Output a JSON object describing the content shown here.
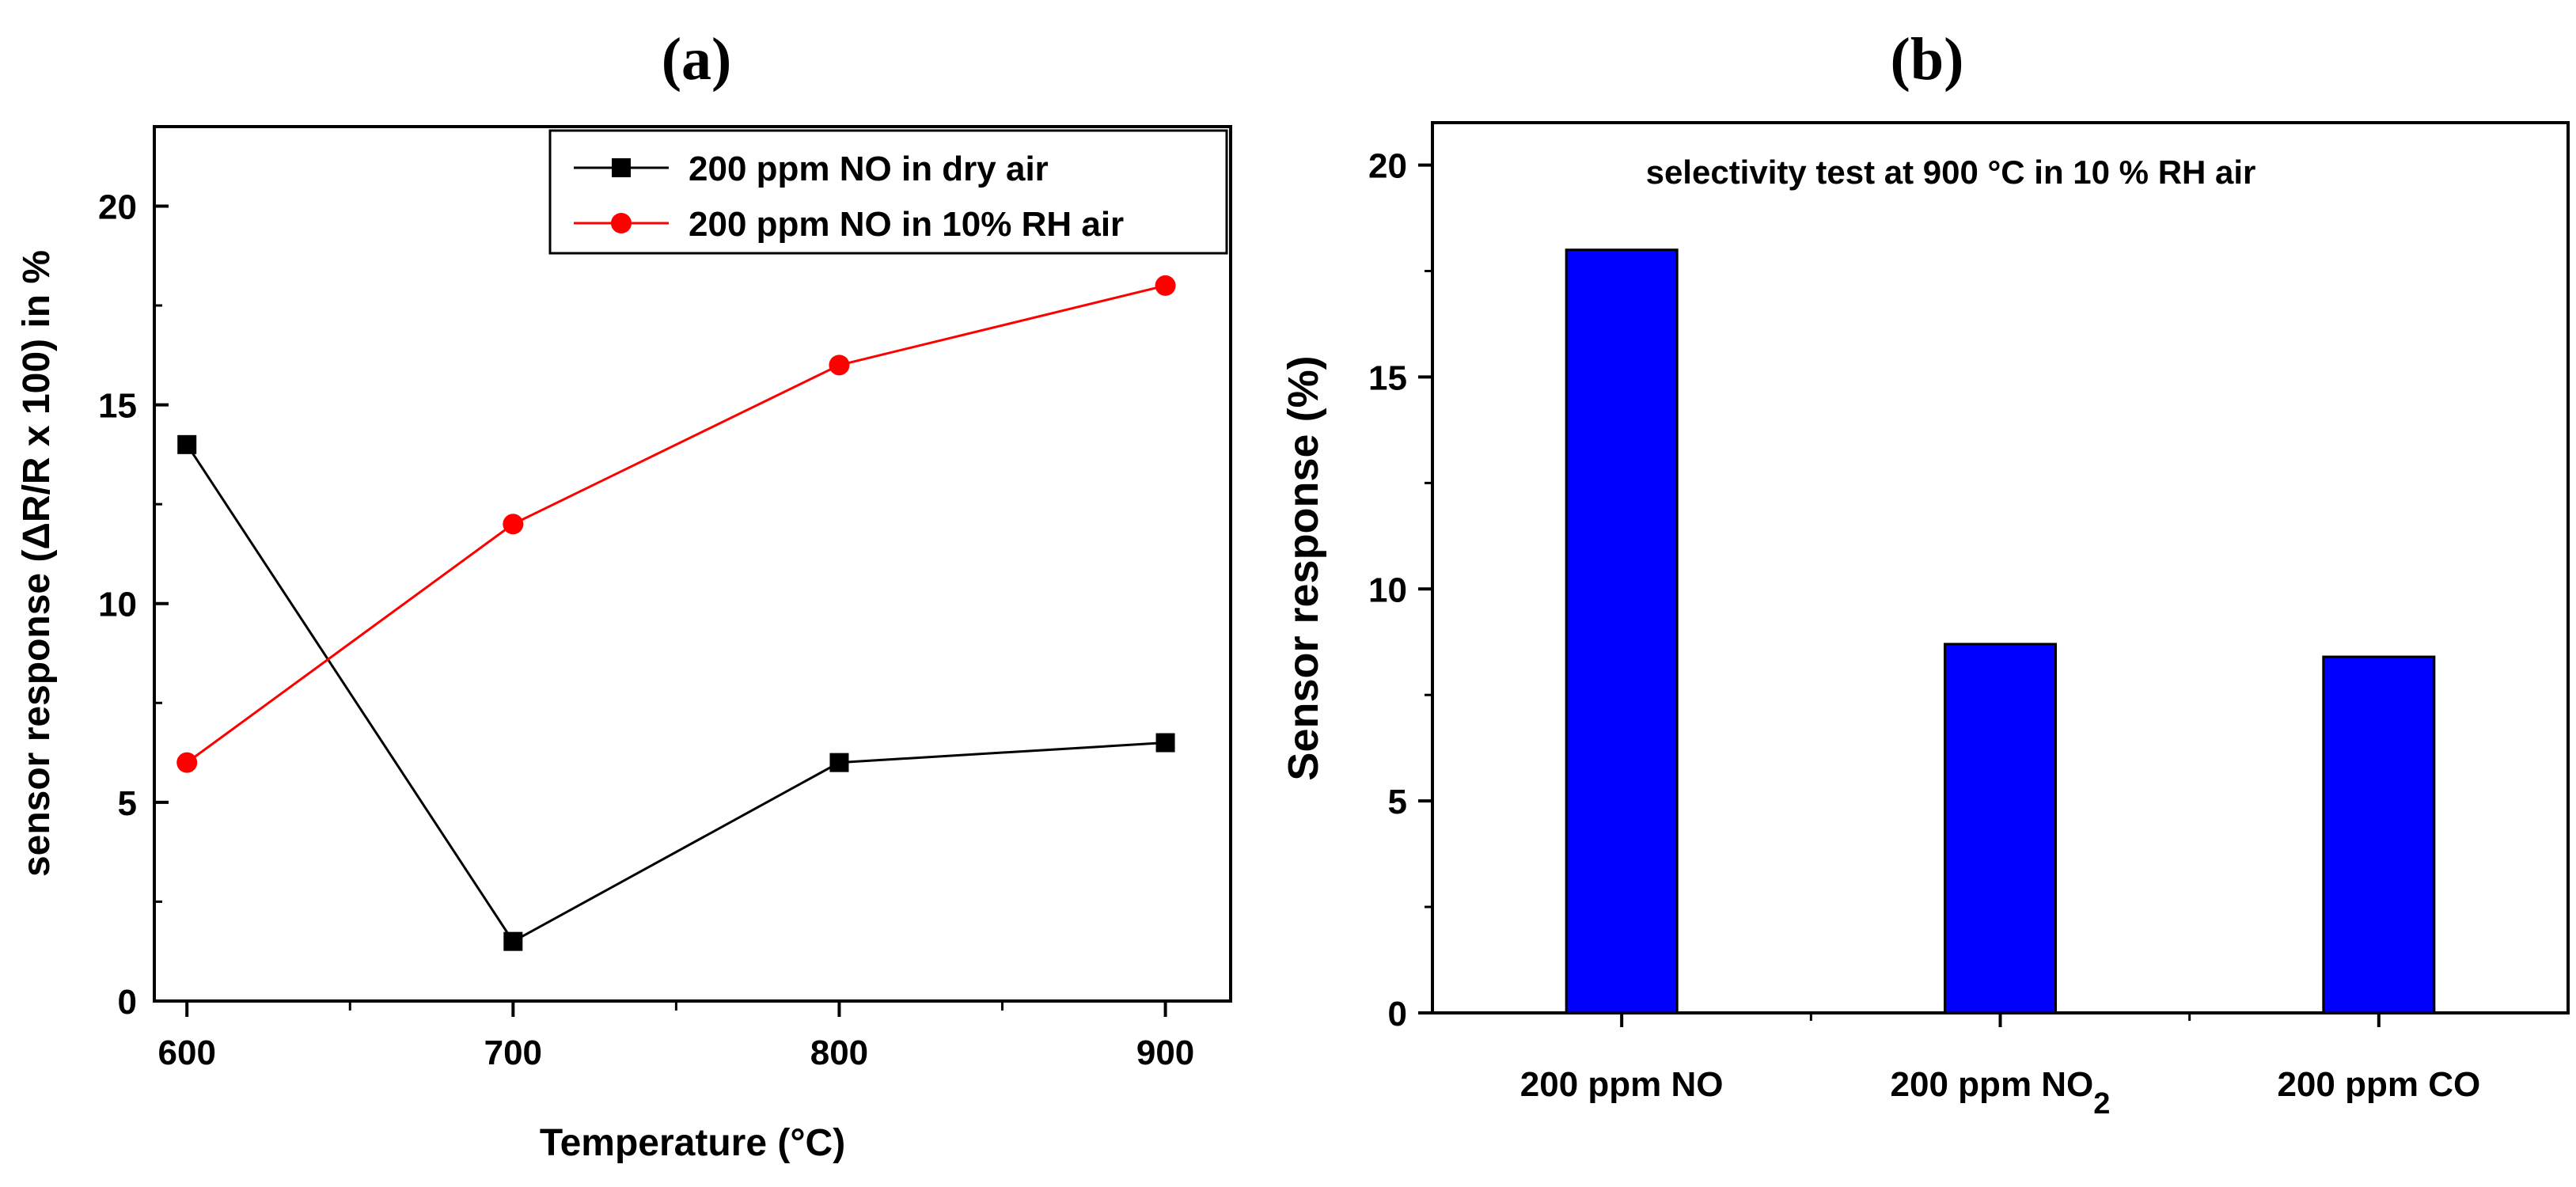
{
  "chart_data": [
    {
      "panel": "(a)",
      "type": "line",
      "x": [
        600,
        700,
        800,
        900
      ],
      "xlim": [
        590,
        920
      ],
      "ylim": [
        0,
        22
      ],
      "xticks": [
        600,
        700,
        800,
        900
      ],
      "yticks": [
        0,
        5,
        10,
        15,
        20
      ],
      "xlabel": "Temperature (°C)",
      "ylabel": "sensor response (ΔR/R x 100) in %",
      "legend_position": "top-right",
      "series": [
        {
          "name": "200 ppm NO in dry air",
          "values": [
            14,
            1.5,
            6,
            6.5
          ],
          "color": "#000000",
          "marker": "square"
        },
        {
          "name": "200 ppm NO in 10% RH air",
          "values": [
            6,
            12,
            16,
            18
          ],
          "color": "#ff0000",
          "marker": "circle"
        }
      ]
    },
    {
      "panel": "(b)",
      "type": "bar",
      "categories": [
        "200 ppm NO",
        "200 ppm NO2",
        "200 ppm CO"
      ],
      "category_labels": [
        {
          "main": "200 ppm NO",
          "sub": ""
        },
        {
          "main": "200 ppm NO",
          "sub": "2"
        },
        {
          "main": "200 ppm CO",
          "sub": ""
        }
      ],
      "values": [
        18,
        8.7,
        8.4
      ],
      "ylim": [
        0,
        21
      ],
      "yticks": [
        0,
        5,
        10,
        15,
        20
      ],
      "xlabel": "",
      "ylabel": "Sensor response (%)",
      "annotation": "selectivity test at 900 °C in  10 % RH air",
      "bar_color": "#0000ff"
    }
  ]
}
